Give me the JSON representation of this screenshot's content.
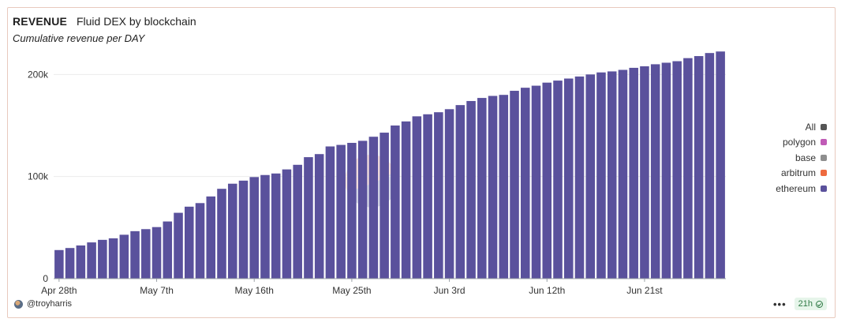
{
  "header": {
    "title": "REVENUE",
    "subtitle": "Fluid DEX by blockchain",
    "description": "Cumulative revenue per DAY"
  },
  "footer": {
    "author": "@troyharris",
    "refresh_badge": "21h",
    "more_icon": "more-icon",
    "author_icon": "avatar"
  },
  "legend": {
    "items": [
      {
        "label": "All",
        "color": "#555555"
      },
      {
        "label": "polygon",
        "color": "#c05bb6"
      },
      {
        "label": "base",
        "color": "#8e8e8e"
      },
      {
        "label": "arbitrum",
        "color": "#ee6a3f"
      },
      {
        "label": "ethereum",
        "color": "#5a519c"
      }
    ]
  },
  "chart_data": {
    "type": "bar",
    "stacked": true,
    "x_tick_labels": [
      "Apr 28th",
      "May 7th",
      "May 16th",
      "May 25th",
      "Jun 3rd",
      "Jun 12th",
      "Jun 21st"
    ],
    "y_tick_labels": [
      "0",
      "100k",
      "200k"
    ],
    "ylim": [
      0,
      225000
    ],
    "grid": true,
    "legend_position": "right",
    "series": [
      {
        "name": "ethereum",
        "color": "#5a519c",
        "values": [
          28000,
          30000,
          32500,
          35500,
          38000,
          39500,
          43000,
          46500,
          48500,
          50500,
          56000,
          64500,
          70500,
          74000,
          80500,
          88000,
          93000,
          96000,
          99500,
          101500,
          103000,
          107000,
          111500,
          119000,
          122000,
          129500,
          131000,
          133000,
          135000,
          139000,
          143000,
          150000,
          154000,
          159000,
          161000,
          163000,
          166000,
          170000,
          174000,
          177000,
          179000,
          180000,
          184000,
          187000,
          189000,
          192000,
          194000,
          196000,
          198000,
          200000,
          202000,
          203000,
          204500,
          206500,
          208000,
          210000,
          211500,
          213000,
          216000,
          218000,
          221000,
          222500
        ]
      }
    ]
  }
}
